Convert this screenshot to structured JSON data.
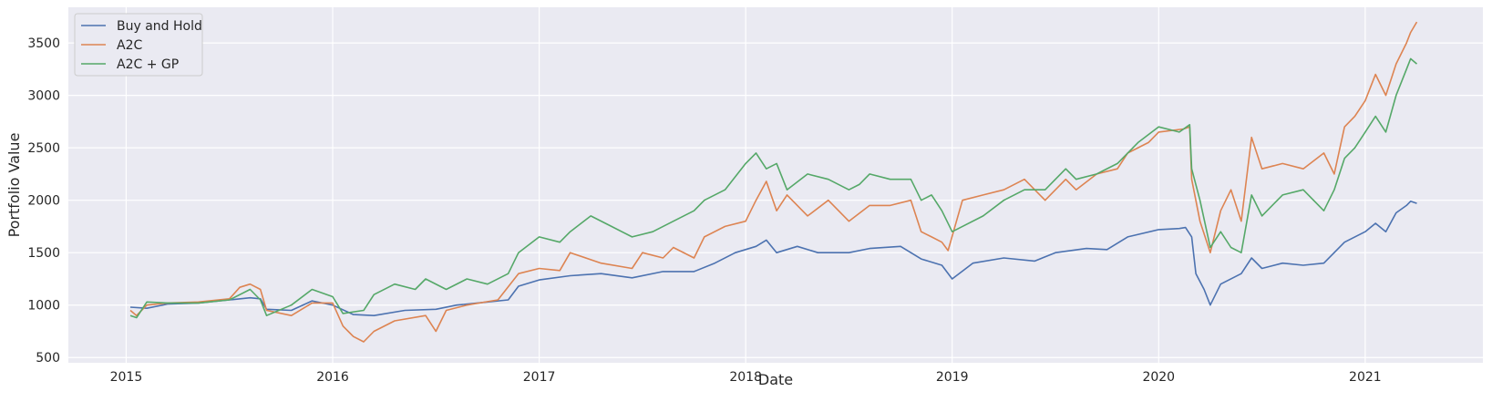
{
  "chart_data": {
    "type": "line",
    "title": "",
    "xlabel": "Date",
    "ylabel": "Portfolio Value",
    "xlim": [
      2014.72,
      2021.57
    ],
    "ylim": [
      450,
      3840
    ],
    "x_ticks": [
      2015,
      2016,
      2017,
      2018,
      2019,
      2020,
      2021
    ],
    "x_tick_labels": [
      "2015",
      "2016",
      "2017",
      "2018",
      "2019",
      "2020",
      "2021"
    ],
    "y_ticks": [
      500,
      1000,
      1500,
      2000,
      2500,
      3000,
      3500
    ],
    "y_tick_labels": [
      "500",
      "1000",
      "1500",
      "2000",
      "2500",
      "3000",
      "3500"
    ],
    "grid": true,
    "legend_position": "top-left",
    "colors": {
      "background": "#eaeaf2",
      "grid": "#ffffff"
    },
    "series": [
      {
        "name": "Buy and Hold",
        "color": "#4c72b0",
        "points": [
          [
            2015.02,
            980
          ],
          [
            2015.1,
            970
          ],
          [
            2015.2,
            1010
          ],
          [
            2015.35,
            1020
          ],
          [
            2015.5,
            1050
          ],
          [
            2015.6,
            1070
          ],
          [
            2015.65,
            1060
          ],
          [
            2015.68,
            960
          ],
          [
            2015.8,
            950
          ],
          [
            2015.9,
            1040
          ],
          [
            2016.0,
            1000
          ],
          [
            2016.1,
            910
          ],
          [
            2016.2,
            900
          ],
          [
            2016.35,
            950
          ],
          [
            2016.5,
            960
          ],
          [
            2016.6,
            1000
          ],
          [
            2016.75,
            1030
          ],
          [
            2016.85,
            1050
          ],
          [
            2016.9,
            1180
          ],
          [
            2017.0,
            1240
          ],
          [
            2017.15,
            1280
          ],
          [
            2017.3,
            1300
          ],
          [
            2017.45,
            1260
          ],
          [
            2017.6,
            1320
          ],
          [
            2017.75,
            1320
          ],
          [
            2017.85,
            1400
          ],
          [
            2017.95,
            1500
          ],
          [
            2018.05,
            1560
          ],
          [
            2018.1,
            1620
          ],
          [
            2018.15,
            1500
          ],
          [
            2018.25,
            1560
          ],
          [
            2018.35,
            1500
          ],
          [
            2018.5,
            1500
          ],
          [
            2018.6,
            1540
          ],
          [
            2018.75,
            1560
          ],
          [
            2018.85,
            1440
          ],
          [
            2018.95,
            1380
          ],
          [
            2019.0,
            1250
          ],
          [
            2019.1,
            1400
          ],
          [
            2019.25,
            1450
          ],
          [
            2019.4,
            1420
          ],
          [
            2019.5,
            1500
          ],
          [
            2019.65,
            1540
          ],
          [
            2019.75,
            1530
          ],
          [
            2019.85,
            1650
          ],
          [
            2020.0,
            1720
          ],
          [
            2020.1,
            1730
          ],
          [
            2020.13,
            1740
          ],
          [
            2020.16,
            1650
          ],
          [
            2020.18,
            1300
          ],
          [
            2020.22,
            1150
          ],
          [
            2020.25,
            1000
          ],
          [
            2020.3,
            1200
          ],
          [
            2020.4,
            1300
          ],
          [
            2020.45,
            1450
          ],
          [
            2020.5,
            1350
          ],
          [
            2020.6,
            1400
          ],
          [
            2020.7,
            1380
          ],
          [
            2020.8,
            1400
          ],
          [
            2020.9,
            1600
          ],
          [
            2021.0,
            1700
          ],
          [
            2021.05,
            1780
          ],
          [
            2021.1,
            1700
          ],
          [
            2021.15,
            1880
          ],
          [
            2021.2,
            1950
          ],
          [
            2021.22,
            1990
          ],
          [
            2021.25,
            1970
          ]
        ]
      },
      {
        "name": "A2C",
        "color": "#dd8452",
        "points": [
          [
            2015.02,
            950
          ],
          [
            2015.05,
            900
          ],
          [
            2015.1,
            1000
          ],
          [
            2015.2,
            1020
          ],
          [
            2015.35,
            1030
          ],
          [
            2015.5,
            1060
          ],
          [
            2015.55,
            1170
          ],
          [
            2015.6,
            1200
          ],
          [
            2015.65,
            1150
          ],
          [
            2015.68,
            950
          ],
          [
            2015.8,
            900
          ],
          [
            2015.9,
            1020
          ],
          [
            2016.0,
            1020
          ],
          [
            2016.05,
            800
          ],
          [
            2016.1,
            700
          ],
          [
            2016.15,
            650
          ],
          [
            2016.2,
            750
          ],
          [
            2016.3,
            850
          ],
          [
            2016.45,
            900
          ],
          [
            2016.5,
            750
          ],
          [
            2016.55,
            950
          ],
          [
            2016.65,
            1000
          ],
          [
            2016.8,
            1050
          ],
          [
            2016.9,
            1300
          ],
          [
            2017.0,
            1350
          ],
          [
            2017.1,
            1330
          ],
          [
            2017.15,
            1500
          ],
          [
            2017.3,
            1400
          ],
          [
            2017.45,
            1350
          ],
          [
            2017.5,
            1500
          ],
          [
            2017.6,
            1450
          ],
          [
            2017.65,
            1550
          ],
          [
            2017.75,
            1450
          ],
          [
            2017.8,
            1650
          ],
          [
            2017.9,
            1750
          ],
          [
            2018.0,
            1800
          ],
          [
            2018.05,
            2000
          ],
          [
            2018.1,
            2180
          ],
          [
            2018.15,
            1900
          ],
          [
            2018.2,
            2050
          ],
          [
            2018.3,
            1850
          ],
          [
            2018.4,
            2000
          ],
          [
            2018.5,
            1800
          ],
          [
            2018.6,
            1950
          ],
          [
            2018.7,
            1950
          ],
          [
            2018.8,
            2000
          ],
          [
            2018.85,
            1700
          ],
          [
            2018.9,
            1650
          ],
          [
            2018.95,
            1600
          ],
          [
            2018.98,
            1520
          ],
          [
            2019.05,
            2000
          ],
          [
            2019.15,
            2050
          ],
          [
            2019.25,
            2100
          ],
          [
            2019.35,
            2200
          ],
          [
            2019.45,
            2000
          ],
          [
            2019.55,
            2200
          ],
          [
            2019.6,
            2100
          ],
          [
            2019.7,
            2250
          ],
          [
            2019.8,
            2300
          ],
          [
            2019.85,
            2450
          ],
          [
            2019.95,
            2550
          ],
          [
            2020.0,
            2650
          ],
          [
            2020.12,
            2680
          ],
          [
            2020.15,
            2700
          ],
          [
            2020.16,
            2200
          ],
          [
            2020.2,
            1800
          ],
          [
            2020.25,
            1500
          ],
          [
            2020.3,
            1900
          ],
          [
            2020.35,
            2100
          ],
          [
            2020.4,
            1800
          ],
          [
            2020.45,
            2600
          ],
          [
            2020.5,
            2300
          ],
          [
            2020.6,
            2350
          ],
          [
            2020.7,
            2300
          ],
          [
            2020.8,
            2450
          ],
          [
            2020.85,
            2250
          ],
          [
            2020.9,
            2700
          ],
          [
            2020.95,
            2800
          ],
          [
            2021.0,
            2950
          ],
          [
            2021.05,
            3200
          ],
          [
            2021.1,
            3000
          ],
          [
            2021.15,
            3300
          ],
          [
            2021.2,
            3500
          ],
          [
            2021.22,
            3600
          ],
          [
            2021.25,
            3700
          ]
        ]
      },
      {
        "name": "A2C + GP",
        "color": "#55a868",
        "points": [
          [
            2015.02,
            900
          ],
          [
            2015.05,
            880
          ],
          [
            2015.1,
            1030
          ],
          [
            2015.2,
            1020
          ],
          [
            2015.35,
            1020
          ],
          [
            2015.5,
            1050
          ],
          [
            2015.6,
            1150
          ],
          [
            2015.65,
            1050
          ],
          [
            2015.68,
            900
          ],
          [
            2015.8,
            1000
          ],
          [
            2015.9,
            1150
          ],
          [
            2016.0,
            1080
          ],
          [
            2016.05,
            920
          ],
          [
            2016.15,
            950
          ],
          [
            2016.2,
            1100
          ],
          [
            2016.3,
            1200
          ],
          [
            2016.4,
            1150
          ],
          [
            2016.45,
            1250
          ],
          [
            2016.55,
            1150
          ],
          [
            2016.65,
            1250
          ],
          [
            2016.75,
            1200
          ],
          [
            2016.85,
            1300
          ],
          [
            2016.9,
            1500
          ],
          [
            2017.0,
            1650
          ],
          [
            2017.1,
            1600
          ],
          [
            2017.15,
            1700
          ],
          [
            2017.25,
            1850
          ],
          [
            2017.35,
            1750
          ],
          [
            2017.45,
            1650
          ],
          [
            2017.55,
            1700
          ],
          [
            2017.65,
            1800
          ],
          [
            2017.75,
            1900
          ],
          [
            2017.8,
            2000
          ],
          [
            2017.9,
            2100
          ],
          [
            2018.0,
            2350
          ],
          [
            2018.05,
            2450
          ],
          [
            2018.1,
            2300
          ],
          [
            2018.15,
            2350
          ],
          [
            2018.2,
            2100
          ],
          [
            2018.3,
            2250
          ],
          [
            2018.4,
            2200
          ],
          [
            2018.5,
            2100
          ],
          [
            2018.55,
            2150
          ],
          [
            2018.6,
            2250
          ],
          [
            2018.7,
            2200
          ],
          [
            2018.8,
            2200
          ],
          [
            2018.85,
            2000
          ],
          [
            2018.9,
            2050
          ],
          [
            2018.95,
            1900
          ],
          [
            2019.0,
            1700
          ],
          [
            2019.05,
            1750
          ],
          [
            2019.15,
            1850
          ],
          [
            2019.25,
            2000
          ],
          [
            2019.35,
            2100
          ],
          [
            2019.45,
            2100
          ],
          [
            2019.55,
            2300
          ],
          [
            2019.6,
            2200
          ],
          [
            2019.7,
            2250
          ],
          [
            2019.8,
            2350
          ],
          [
            2019.9,
            2550
          ],
          [
            2020.0,
            2700
          ],
          [
            2020.1,
            2650
          ],
          [
            2020.15,
            2720
          ],
          [
            2020.16,
            2300
          ],
          [
            2020.2,
            2000
          ],
          [
            2020.25,
            1550
          ],
          [
            2020.3,
            1700
          ],
          [
            2020.35,
            1550
          ],
          [
            2020.4,
            1500
          ],
          [
            2020.45,
            2050
          ],
          [
            2020.5,
            1850
          ],
          [
            2020.6,
            2050
          ],
          [
            2020.7,
            2100
          ],
          [
            2020.8,
            1900
          ],
          [
            2020.85,
            2100
          ],
          [
            2020.9,
            2400
          ],
          [
            2020.95,
            2500
          ],
          [
            2021.0,
            2650
          ],
          [
            2021.05,
            2800
          ],
          [
            2021.1,
            2650
          ],
          [
            2021.15,
            3000
          ],
          [
            2021.2,
            3250
          ],
          [
            2021.22,
            3350
          ],
          [
            2021.25,
            3300
          ]
        ]
      }
    ]
  }
}
